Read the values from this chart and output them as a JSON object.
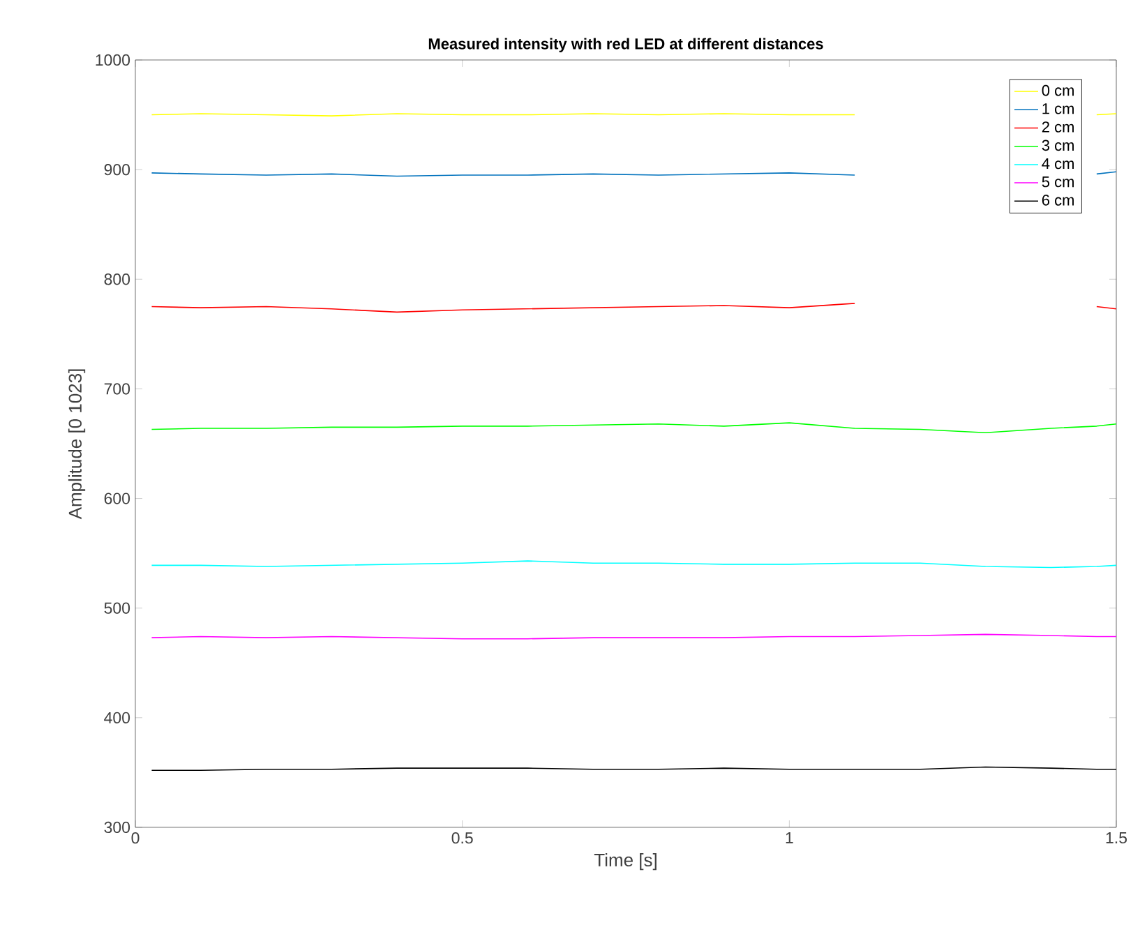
{
  "chart_data": {
    "type": "line",
    "title": "Measured intensity with red LED at different distances",
    "xlabel": "Time [s]",
    "ylabel": "Amplitude [0 1023]",
    "x": [
      0.025,
      0.1,
      0.2,
      0.3,
      0.4,
      0.5,
      0.6,
      0.7,
      0.8,
      0.9,
      1.0,
      1.1,
      1.2,
      1.3,
      1.4,
      1.47,
      1.5
    ],
    "xlim": [
      0,
      1.5
    ],
    "ylim": [
      300,
      1000
    ],
    "xticks": [
      0,
      0.5,
      1,
      1.5
    ],
    "yticks": [
      300,
      400,
      500,
      600,
      700,
      800,
      900,
      1000
    ],
    "grid": false,
    "legend": "top right",
    "series": [
      {
        "name": "0 cm",
        "color": "#ffff00",
        "values": [
          950,
          951,
          950,
          949,
          951,
          950,
          950,
          951,
          950,
          951,
          950,
          950,
          null,
          null,
          null,
          950,
          951
        ]
      },
      {
        "name": "1 cm",
        "color": "#0072bd",
        "values": [
          897,
          896,
          895,
          896,
          894,
          895,
          895,
          896,
          895,
          896,
          897,
          895,
          null,
          null,
          null,
          896,
          898
        ]
      },
      {
        "name": "2 cm",
        "color": "#ff0000",
        "values": [
          775,
          774,
          775,
          773,
          770,
          772,
          773,
          774,
          775,
          776,
          774,
          778,
          null,
          null,
          null,
          775,
          773
        ]
      },
      {
        "name": "3 cm",
        "color": "#00ff00",
        "values": [
          663,
          664,
          664,
          665,
          665,
          666,
          666,
          667,
          668,
          666,
          669,
          664,
          663,
          660,
          664,
          666,
          668
        ]
      },
      {
        "name": "4 cm",
        "color": "#00ffff",
        "values": [
          539,
          539,
          538,
          539,
          540,
          541,
          543,
          541,
          541,
          540,
          540,
          541,
          541,
          538,
          537,
          538,
          539
        ]
      },
      {
        "name": "5 cm",
        "color": "#ff00ff",
        "values": [
          473,
          474,
          473,
          474,
          473,
          472,
          472,
          473,
          473,
          473,
          474,
          474,
          475,
          476,
          475,
          474,
          474
        ]
      },
      {
        "name": "6 cm",
        "color": "#000000",
        "values": [
          352,
          352,
          353,
          353,
          354,
          354,
          354,
          353,
          353,
          354,
          353,
          353,
          353,
          355,
          354,
          353,
          353
        ]
      }
    ]
  }
}
